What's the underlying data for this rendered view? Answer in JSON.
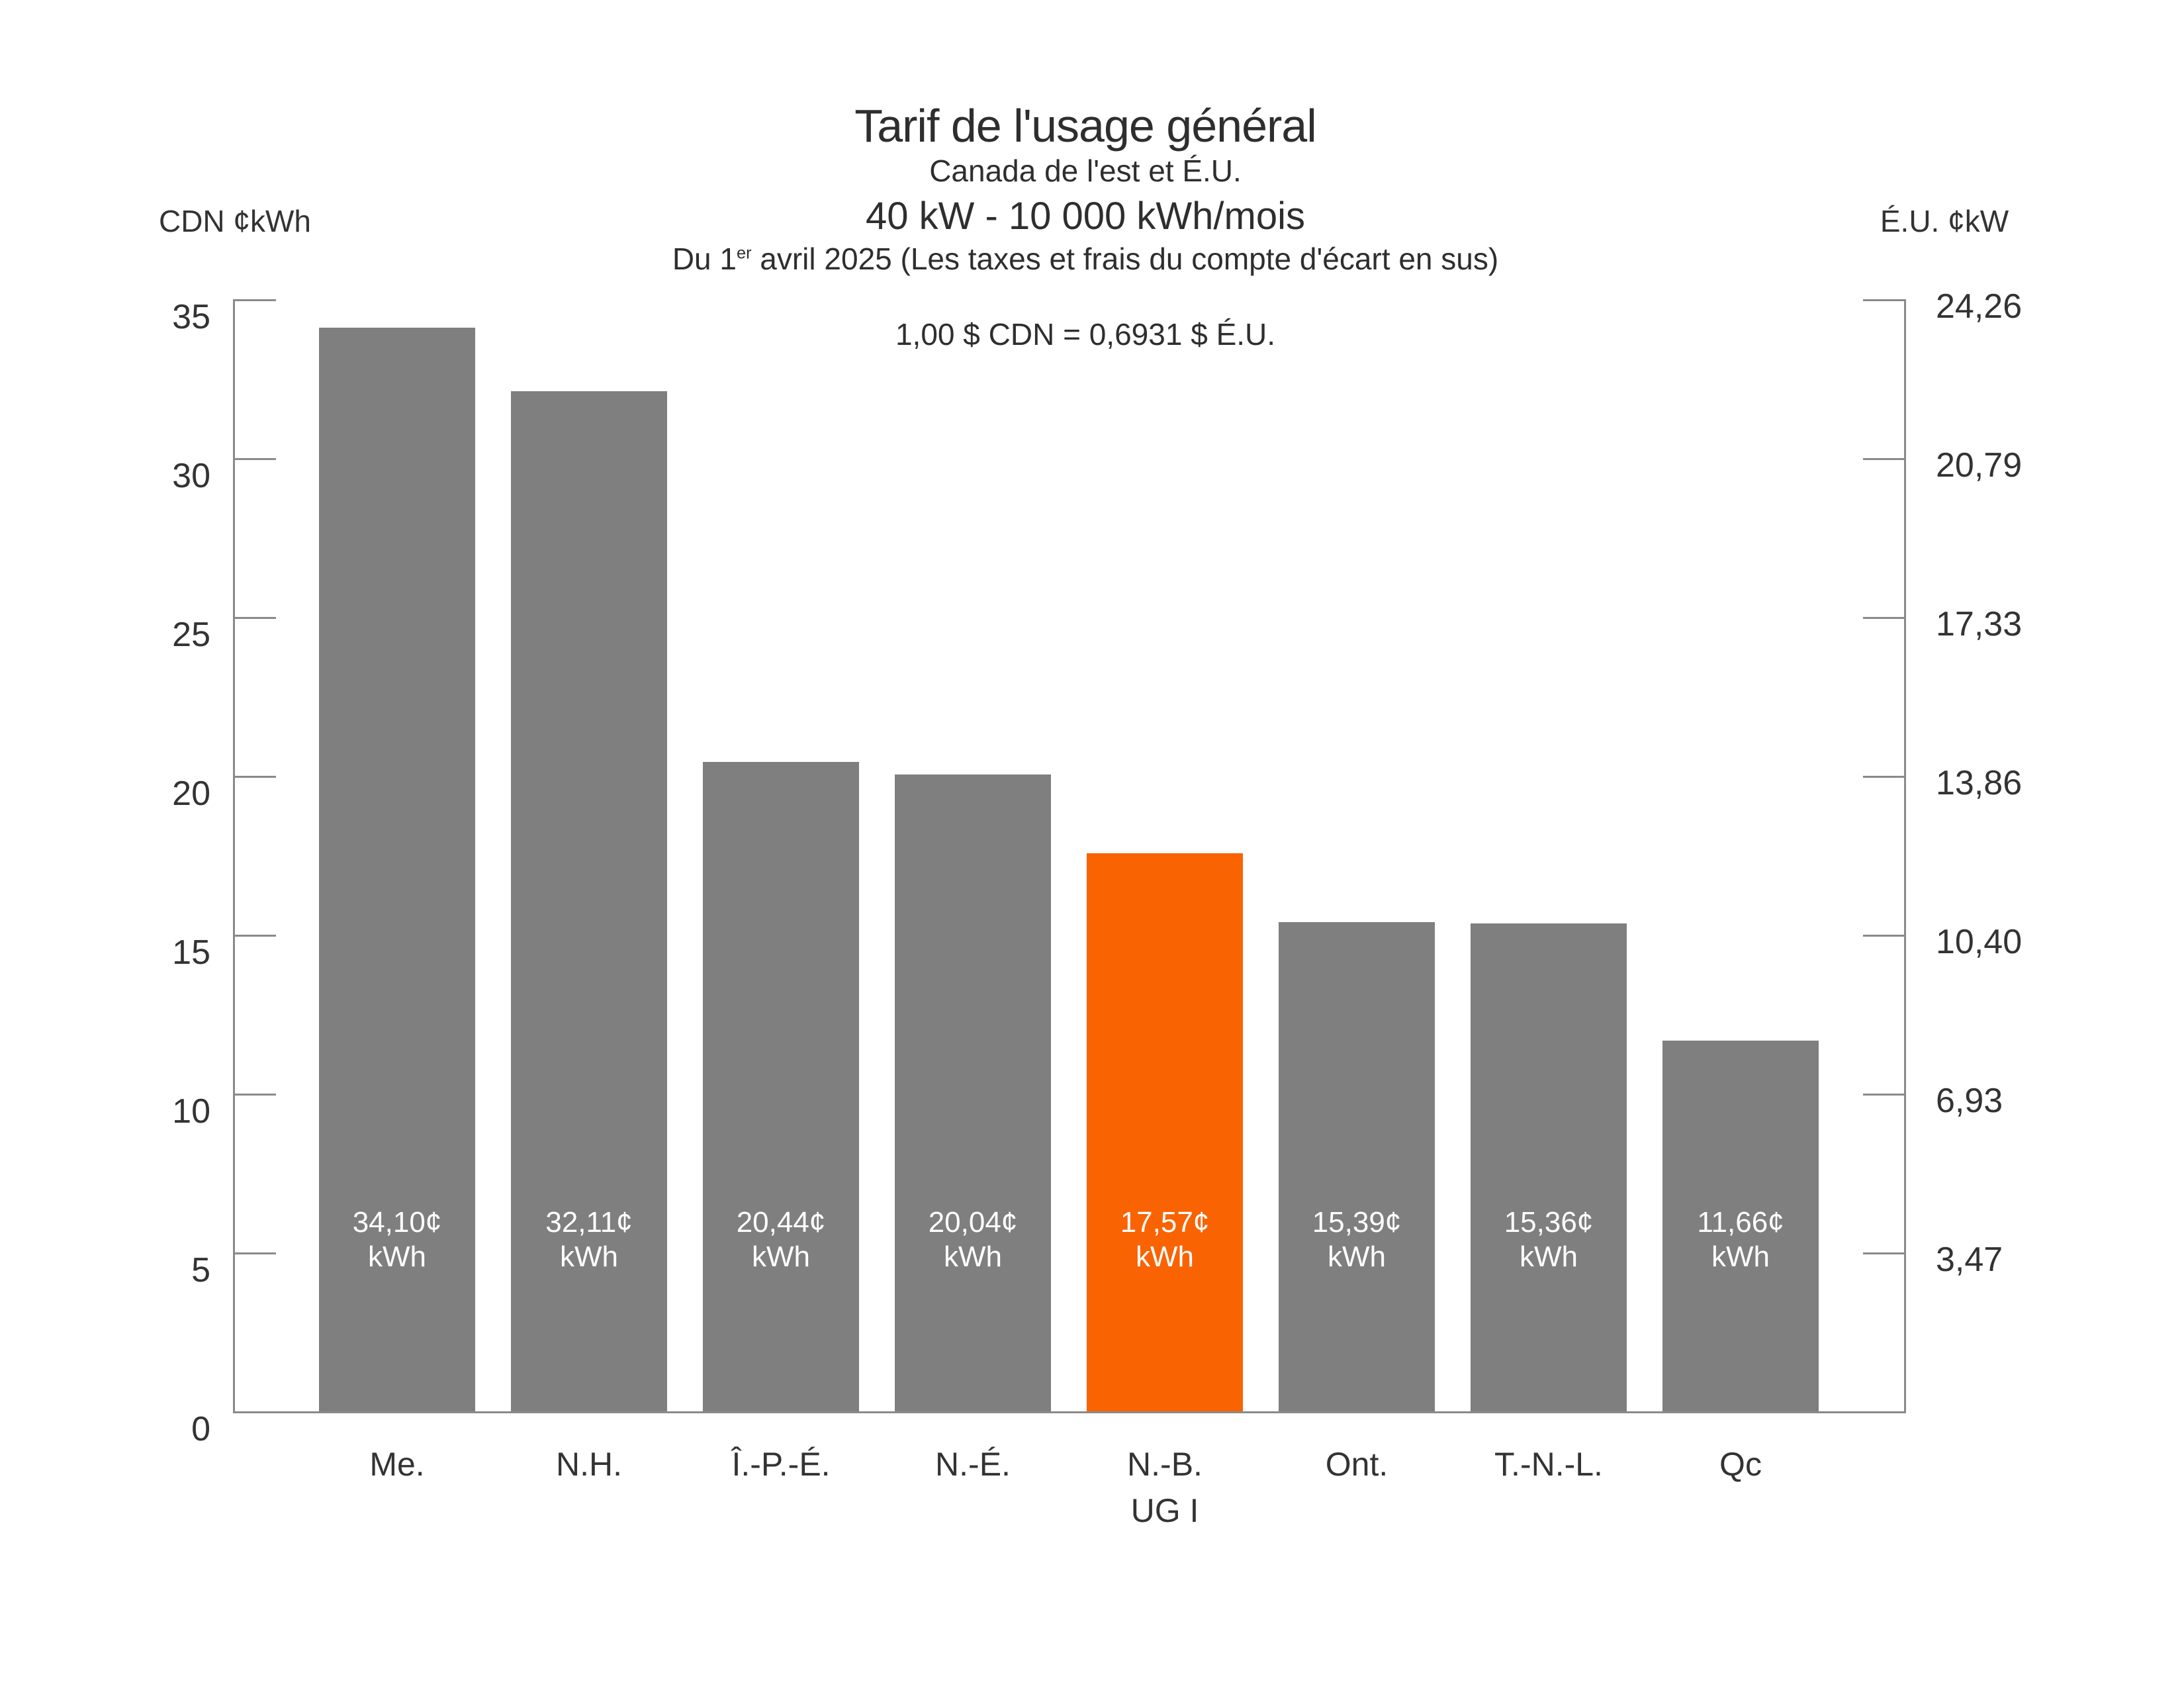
{
  "chart_data": {
    "type": "bar",
    "title": "Tarif de l'usage général",
    "subtitle_region": "Canada de l'est et É.U.",
    "subtitle_load": "40 kW - 10 000 kWh/mois",
    "date_line": {
      "prefix": "Du 1",
      "sup": "er",
      "suffix": " avril 2025 (Les taxes et frais du compte d'écart en sus)"
    },
    "exchange_note": "1,00 $ CDN = 0,6931 $ É.U.",
    "grid": "off",
    "legend": "none",
    "left_axis": {
      "unit_label": "CDN ¢kWh",
      "min": 0,
      "max": 35,
      "tick_step": 5,
      "tick_labels": [
        "35",
        "30",
        "25",
        "20",
        "15",
        "10",
        "5",
        "0"
      ]
    },
    "right_axis": {
      "unit_label": "É.U. ¢kW",
      "ticks": [
        {
          "label": "24,26",
          "at_left_value": 35
        },
        {
          "label": "20,79",
          "at_left_value": 30
        },
        {
          "label": "17,33",
          "at_left_value": 25
        },
        {
          "label": "13,86",
          "at_left_value": 20
        },
        {
          "label": "10,40",
          "at_left_value": 15
        },
        {
          "label": "6,93",
          "at_left_value": 10
        },
        {
          "label": "3,47",
          "at_left_value": 5
        }
      ]
    },
    "categories": [
      "Me.",
      "N.H.",
      "Î.-P.-É.",
      "N.-É.",
      "N.-B.",
      "Ont.",
      "T.-N.-L.",
      "Qc"
    ],
    "bars": [
      {
        "category": "Me.",
        "sublabel": "",
        "value": 34.1,
        "label_line1": "34,10¢",
        "label_line2": "kWh",
        "highlight": false
      },
      {
        "category": "N.H.",
        "sublabel": "",
        "value": 32.11,
        "label_line1": "32,11¢",
        "label_line2": "kWh",
        "highlight": false
      },
      {
        "category": "Î.-P.-É.",
        "sublabel": "",
        "value": 20.44,
        "label_line1": "20,44¢",
        "label_line2": "kWh",
        "highlight": false
      },
      {
        "category": "N.-É.",
        "sublabel": "",
        "value": 20.04,
        "label_line1": "20,04¢",
        "label_line2": "kWh",
        "highlight": false
      },
      {
        "category": "N.-B.",
        "sublabel": "UG I",
        "value": 17.57,
        "label_line1": "17,57¢",
        "label_line2": "kWh",
        "highlight": true
      },
      {
        "category": "Ont.",
        "sublabel": "",
        "value": 15.39,
        "label_line1": "15,39¢",
        "label_line2": "kWh",
        "highlight": false
      },
      {
        "category": "T.-N.-L.",
        "sublabel": "",
        "value": 15.36,
        "label_line1": "15,36¢",
        "label_line2": "kWh",
        "highlight": false
      },
      {
        "category": "Qc",
        "sublabel": "",
        "value": 11.66,
        "label_line1": "11,66¢",
        "label_line2": "kWh",
        "highlight": false
      }
    ],
    "colors": {
      "bar": "#7F7F7F",
      "highlight_bar": "#F96302",
      "axis": "#8A8A8A",
      "text": "#333333",
      "bar_label_text": "#FFFFFF"
    }
  }
}
